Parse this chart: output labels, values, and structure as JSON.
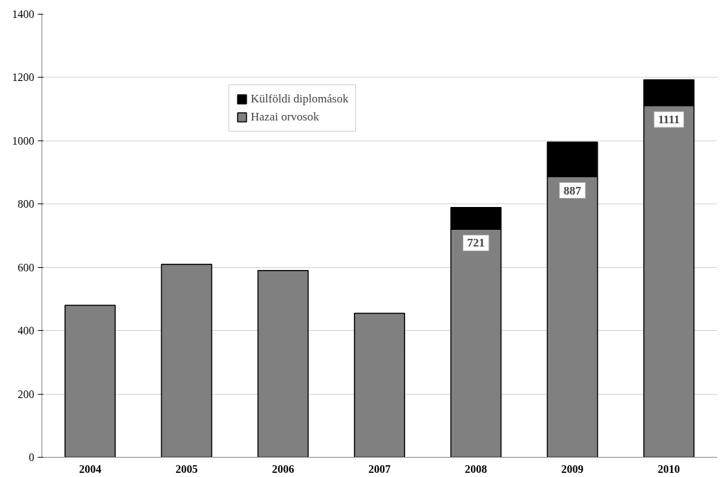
{
  "chart_data": {
    "type": "bar",
    "stacked": true,
    "categories": [
      "2004",
      "2005",
      "2006",
      "2007",
      "2008",
      "2009",
      "2010"
    ],
    "series": [
      {
        "name": "Hazai orvosok",
        "color": "#808080",
        "values": [
          480,
          610,
          590,
          455,
          721,
          887,
          1111
        ],
        "value_labels": [
          null,
          null,
          null,
          null,
          "721",
          "887",
          "1111"
        ]
      },
      {
        "name": "Külföldi diplomások",
        "color": "#000000",
        "values": [
          null,
          null,
          null,
          null,
          68,
          109,
          82
        ]
      }
    ],
    "ylim": [
      0,
      1400
    ],
    "yticks": [
      0,
      200,
      400,
      600,
      800,
      1000,
      1200,
      1400
    ],
    "grid": "y",
    "legend": "top"
  }
}
